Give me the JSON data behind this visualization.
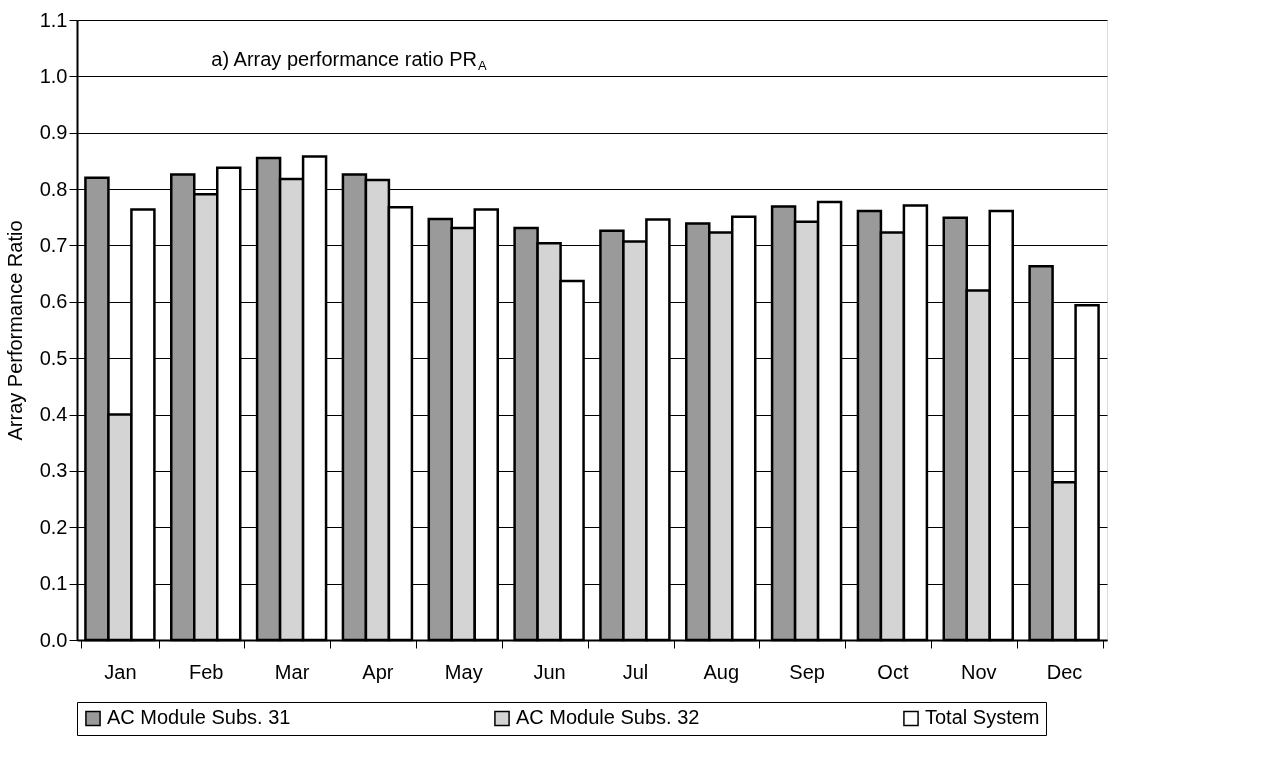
{
  "chart_data": {
    "type": "bar",
    "ylabel": "Array Performance Ratio",
    "annotations": [
      "a) Array performance ratio PR$_{A}$"
    ],
    "categories": [
      "Jan",
      "Feb",
      "Mar",
      "Apr",
      "May",
      "Jun",
      "Jul",
      "Aug",
      "Sep",
      "Oct",
      "Nov",
      "Dec"
    ],
    "series": [
      {
        "name": "AC Module Subs. 31",
        "color": "#9a9a9a",
        "values": [
          0.82,
          0.826,
          0.855,
          0.826,
          0.747,
          0.731,
          0.726,
          0.739,
          0.769,
          0.761,
          0.749,
          0.663
        ]
      },
      {
        "name": "AC Module Subs. 32",
        "color": "#d4d4d4",
        "values": [
          0.4,
          0.791,
          0.818,
          0.816,
          0.731,
          0.704,
          0.707,
          0.723,
          0.742,
          0.723,
          0.62,
          0.28
        ]
      },
      {
        "name": "Total System",
        "color": "#ffffff",
        "values": [
          0.764,
          0.838,
          0.858,
          0.768,
          0.764,
          0.637,
          0.746,
          0.751,
          0.777,
          0.771,
          0.761,
          0.594
        ]
      }
    ],
    "ylim": [
      0,
      1.1
    ],
    "yticks": [
      {
        "value": 0,
        "label": "0.0"
      },
      0.1,
      0.2,
      0.3,
      0.4,
      0.5,
      0.6,
      0.7,
      0.8,
      0.9,
      {
        "value": 1.0,
        "label": "1.0"
      },
      1.1
    ],
    "grid": "y",
    "legend": "bottom"
  }
}
